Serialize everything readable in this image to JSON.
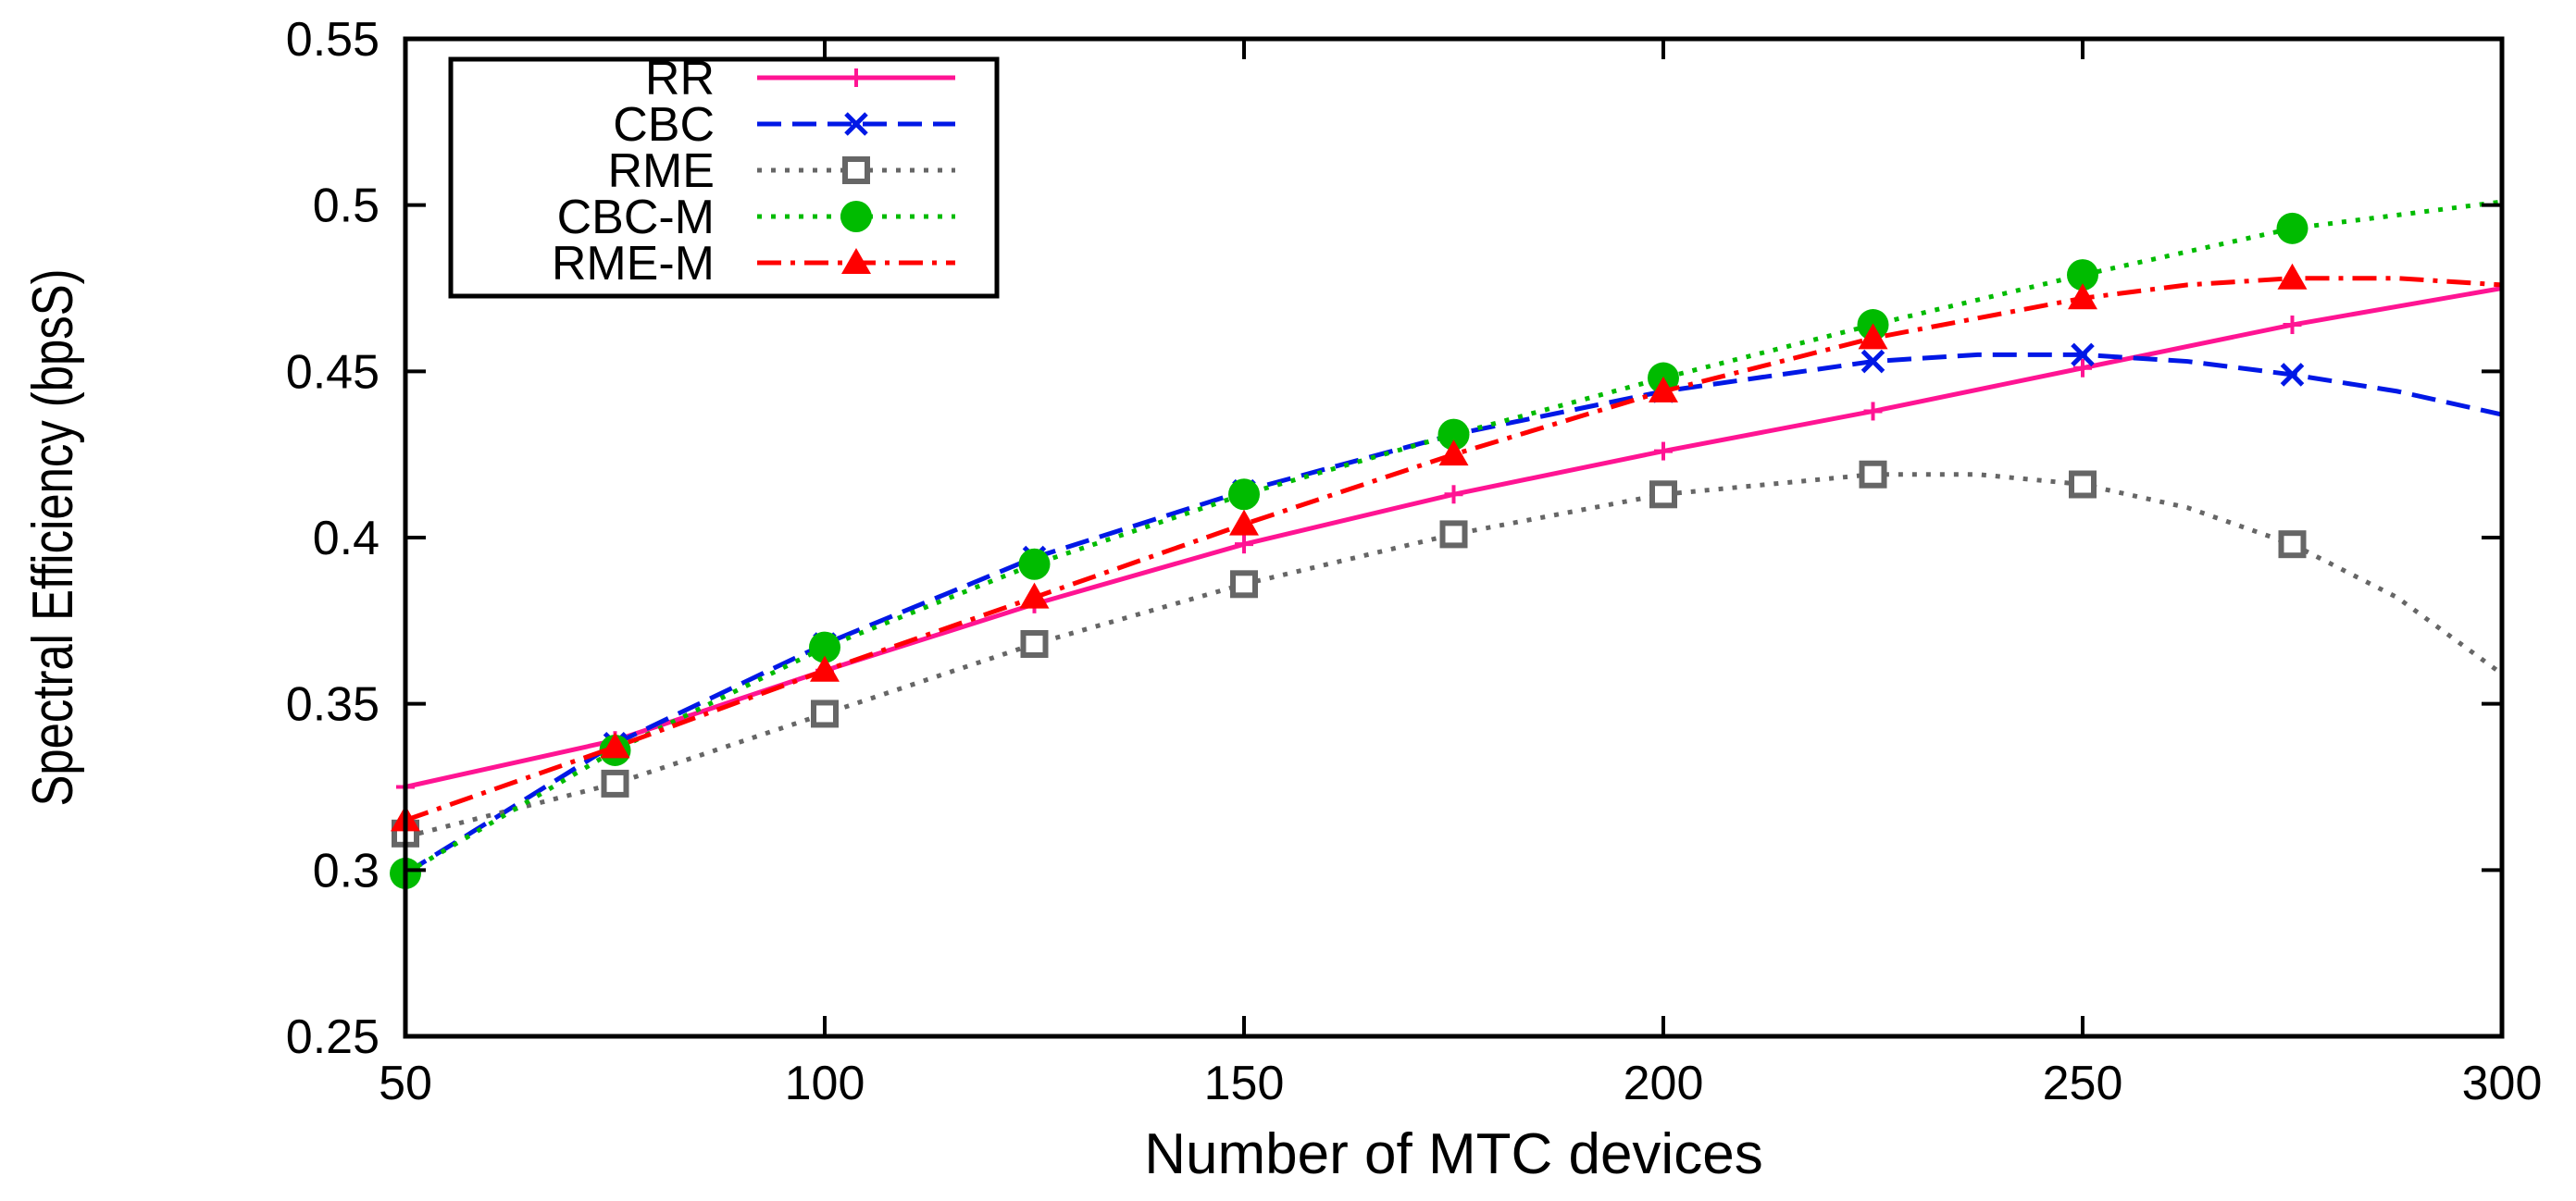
{
  "chart_data": {
    "type": "line",
    "title": "",
    "xlabel": "Number of MTC devices",
    "ylabel": "Spectral Efficiency (bpsS)",
    "xlim": [
      50,
      300
    ],
    "ylim": [
      0.25,
      0.55
    ],
    "xticks": [
      50,
      100,
      150,
      200,
      250,
      300
    ],
    "yticks": [
      0.25,
      0.3,
      0.35,
      0.4,
      0.45,
      0.5,
      0.55
    ],
    "xtick_labels": [
      "50",
      "100",
      "150",
      "200",
      "250",
      "300"
    ],
    "ytick_labels": [
      "0.25",
      "0.3",
      "0.35",
      "0.4",
      "0.45",
      "0.5",
      "0.55"
    ],
    "legend_position": "top-left",
    "marker_x": [
      50,
      75,
      100,
      125,
      150,
      175,
      200,
      225,
      250,
      275
    ],
    "series": [
      {
        "name": "RR",
        "color": "#ff1493",
        "dash": "solid",
        "marker": "plus",
        "curve_x": [
          50,
          75,
          100,
          125,
          150,
          175,
          200,
          225,
          250,
          275,
          300
        ],
        "curve_y": [
          0.325,
          0.339,
          0.36,
          0.38,
          0.398,
          0.413,
          0.426,
          0.438,
          0.451,
          0.464,
          0.475
        ],
        "values": [
          0.325,
          0.339,
          0.36,
          0.38,
          0.398,
          0.413,
          0.426,
          0.438,
          0.451,
          0.464
        ]
      },
      {
        "name": "CBC",
        "color": "#0018e6",
        "dash": "dashed",
        "marker": "x",
        "curve_x": [
          50,
          75,
          100,
          125,
          150,
          175,
          200,
          225,
          237.5,
          250,
          262.5,
          275,
          287.5,
          300
        ],
        "curve_y": [
          0.299,
          0.338,
          0.368,
          0.394,
          0.414,
          0.431,
          0.444,
          0.453,
          0.455,
          0.455,
          0.453,
          0.449,
          0.444,
          0.437
        ],
        "values": [
          0.299,
          0.338,
          0.368,
          0.394,
          0.414,
          0.431,
          0.444,
          0.453,
          0.455,
          0.449
        ]
      },
      {
        "name": "RME",
        "color": "#666666",
        "dash": "dotted",
        "marker": "square",
        "curve_x": [
          50,
          75,
          100,
          125,
          150,
          175,
          200,
          225,
          237.5,
          250,
          262.5,
          275,
          287.5,
          300
        ],
        "curve_y": [
          0.31,
          0.326,
          0.347,
          0.368,
          0.386,
          0.401,
          0.413,
          0.419,
          0.419,
          0.416,
          0.409,
          0.398,
          0.382,
          0.359
        ],
        "values": [
          0.311,
          0.326,
          0.347,
          0.368,
          0.386,
          0.401,
          0.413,
          0.419,
          0.416,
          0.398
        ]
      },
      {
        "name": "CBC-M",
        "color": "#00bb00",
        "dash": "dotted",
        "marker": "circle",
        "curve_x": [
          50,
          75,
          100,
          125,
          150,
          175,
          200,
          225,
          250,
          275,
          300
        ],
        "curve_y": [
          0.299,
          0.336,
          0.367,
          0.392,
          0.413,
          0.431,
          0.448,
          0.464,
          0.479,
          0.493,
          0.501
        ],
        "values": [
          0.299,
          0.336,
          0.367,
          0.392,
          0.413,
          0.431,
          0.448,
          0.464,
          0.479,
          0.493
        ]
      },
      {
        "name": "RME-M",
        "color": "#ff0000",
        "dash": "dashdot",
        "marker": "triangle",
        "curve_x": [
          50,
          75,
          100,
          125,
          150,
          175,
          200,
          225,
          250,
          262.5,
          275,
          287.5,
          300
        ],
        "curve_y": [
          0.315,
          0.337,
          0.36,
          0.382,
          0.404,
          0.425,
          0.444,
          0.46,
          0.472,
          0.476,
          0.478,
          0.478,
          0.476
        ],
        "values": [
          0.315,
          0.337,
          0.36,
          0.382,
          0.404,
          0.425,
          0.444,
          0.46,
          0.472,
          0.478
        ]
      }
    ]
  }
}
